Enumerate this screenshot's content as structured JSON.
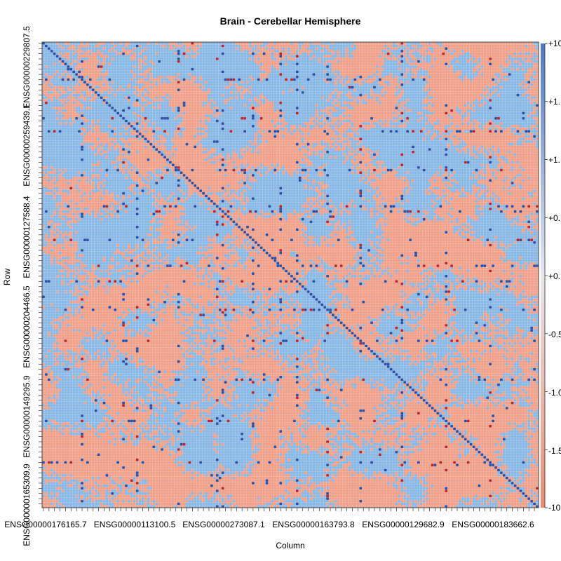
{
  "chart_data": {
    "type": "heatmap",
    "title": "Brain - Cerebellar Hemisphere",
    "xlabel": "Column",
    "ylabel": "Row",
    "x_tick_labels": [
      "ENSG00000176165.7",
      "ENSG00000113100.5",
      "ENSG00000273087.1",
      "ENSG00000163793.8",
      "ENSG00000129682.9",
      "ENSG00000183662.6"
    ],
    "y_tick_labels": [
      "ENSG00000229807.5",
      "ENSG00000259439.1",
      "ENSG00000127588.4",
      "ENSG00000204466.5",
      "ENSG00000149295.9",
      "ENSG00000165309.9"
    ],
    "colorbar": {
      "range": [
        -10,
        10
      ],
      "tick_labels": [
        "+10",
        "+1.",
        "+1.",
        "+0.",
        "+0.",
        "-0.5",
        "-1.0",
        "-1.5",
        "-10"
      ],
      "low_color": "#f08a6a",
      "high_color": "#4e79c9"
    },
    "matrix_size": 180,
    "diagonal_value": 10,
    "background_correlation_range": [
      -0.5,
      0.5
    ],
    "strong_rows_cols_fraction": [
      0.08,
      0.16,
      0.19,
      0.27,
      0.35,
      0.36,
      0.42,
      0.48,
      0.51,
      0.57,
      0.64,
      0.72,
      0.81,
      0.9
    ],
    "colors": {
      "negative": "#f4a088",
      "positive": "#86b9e8",
      "strong_positive": "#2a4fa6",
      "strong_negative": "#c0232a",
      "grid": "#d9d9d9"
    }
  }
}
